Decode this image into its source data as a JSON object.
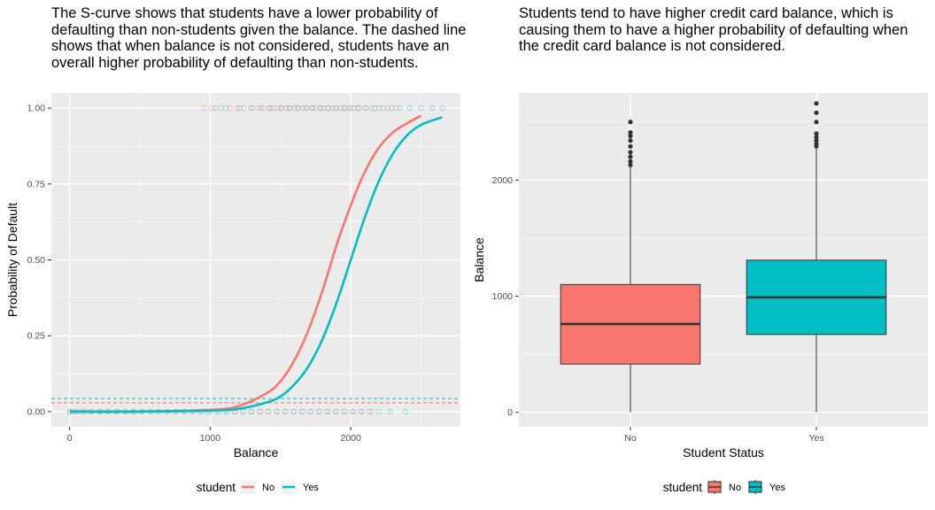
{
  "chart_data": [
    {
      "type": "line",
      "title": "The S-curve shows that students have a lower probability of defaulting than non-students given the balance. The dashed line shows that when balance is not considered, students have an overall higher probability of defaulting than non-students.",
      "xlabel": "Balance",
      "ylabel": "Probability of Default",
      "xlim": [
        -130,
        2780
      ],
      "ylim": [
        -0.05,
        1.05
      ],
      "xticks": [
        0,
        1000,
        2000
      ],
      "yticks": [
        0,
        0.25,
        0.5,
        0.75,
        1.0
      ],
      "ytick_labels": [
        "0.00",
        "0.25",
        "0.50",
        "0.75",
        "1.00"
      ],
      "grid": true,
      "legend": {
        "title": "student",
        "position": "bottom",
        "entries": [
          "No",
          "Yes"
        ]
      },
      "series": [
        {
          "name": "No",
          "color": "#F8766D",
          "x": [
            0,
            500,
            1000,
            1200,
            1400,
            1500,
            1600,
            1700,
            1800,
            1900,
            2000,
            2100,
            2200,
            2300,
            2400,
            2500
          ],
          "y": [
            0.0,
            0.0002,
            0.006,
            0.018,
            0.06,
            0.1,
            0.17,
            0.27,
            0.4,
            0.55,
            0.68,
            0.79,
            0.87,
            0.92,
            0.95,
            0.975
          ],
          "overall_rate": 0.029
        },
        {
          "name": "Yes",
          "color": "#00BFC4",
          "x": [
            0,
            500,
            1000,
            1200,
            1400,
            1500,
            1600,
            1700,
            1800,
            1900,
            2000,
            2100,
            2200,
            2300,
            2400,
            2500,
            2650
          ],
          "y": [
            0.0,
            0.0001,
            0.003,
            0.009,
            0.03,
            0.05,
            0.09,
            0.15,
            0.24,
            0.36,
            0.5,
            0.64,
            0.76,
            0.85,
            0.91,
            0.945,
            0.97
          ],
          "overall_rate": 0.043
        }
      ],
      "points": {
        "default_yes_no_student_x": [
          960,
          1010,
          1080,
          1140,
          1190,
          1240,
          1300,
          1340,
          1380,
          1420,
          1450,
          1480,
          1510,
          1540,
          1570,
          1600,
          1630,
          1660,
          1690,
          1720,
          1750,
          1780,
          1810,
          1840,
          1870,
          1900,
          1930,
          1960,
          1990,
          2020,
          2060,
          2100,
          2150,
          2200,
          2260,
          2320
        ],
        "default_yes_student_x": [
          1040,
          1110,
          1210,
          1290,
          1360,
          1430,
          1500,
          1560,
          1620,
          1680,
          1730,
          1790,
          1840,
          1890,
          1950,
          2000,
          2050,
          2110,
          2170,
          2230,
          2290,
          2350,
          2420,
          2500,
          2580,
          2650
        ],
        "default_no_no_student_x": [
          0,
          20,
          60,
          110,
          160,
          220,
          280,
          340,
          400,
          460,
          520,
          580,
          640,
          700,
          760,
          820,
          880,
          940,
          1000,
          1060,
          1120,
          1180,
          1240,
          1300,
          1360,
          1420,
          1480,
          1540,
          1600,
          1660,
          1720,
          1780,
          1840,
          1900,
          1960,
          2020,
          2080,
          2150
        ],
        "default_no_student_x": [
          0,
          40,
          90,
          150,
          210,
          270,
          330,
          390,
          450,
          510,
          570,
          630,
          690,
          750,
          810,
          870,
          930,
          990,
          1050,
          1110,
          1170,
          1230,
          1290,
          1350,
          1410,
          1470,
          1530,
          1590,
          1650,
          1710,
          1770,
          1830,
          1890,
          1950,
          2010,
          2070,
          2130,
          2200,
          2280,
          2390
        ]
      }
    },
    {
      "type": "box",
      "title": "Students tend to have higher credit card balance, which is causing them to have a higher probability of defaulting when the credit card balance is not considered.",
      "xlabel": "Student Status",
      "ylabel": "Balance",
      "categories": [
        "No",
        "Yes"
      ],
      "ylim": [
        -125,
        2750
      ],
      "yticks": [
        0,
        1000,
        2000
      ],
      "grid": true,
      "legend": {
        "title": "student",
        "position": "bottom",
        "entries": [
          "No",
          "Yes"
        ]
      },
      "boxes": [
        {
          "name": "No",
          "color": "#F8766D",
          "min": 0,
          "q1": 415,
          "median": 760,
          "q3": 1100,
          "whisker_high": 2110,
          "outliers": [
            2130,
            2160,
            2200,
            2240,
            2290,
            2340,
            2380,
            2410,
            2500
          ]
        },
        {
          "name": "Yes",
          "color": "#00BFC4",
          "min": 0,
          "q1": 670,
          "median": 990,
          "q3": 1310,
          "whisker_high": 2270,
          "outliers": [
            2290,
            2310,
            2340,
            2370,
            2400,
            2500,
            2580,
            2660
          ]
        }
      ]
    }
  ]
}
